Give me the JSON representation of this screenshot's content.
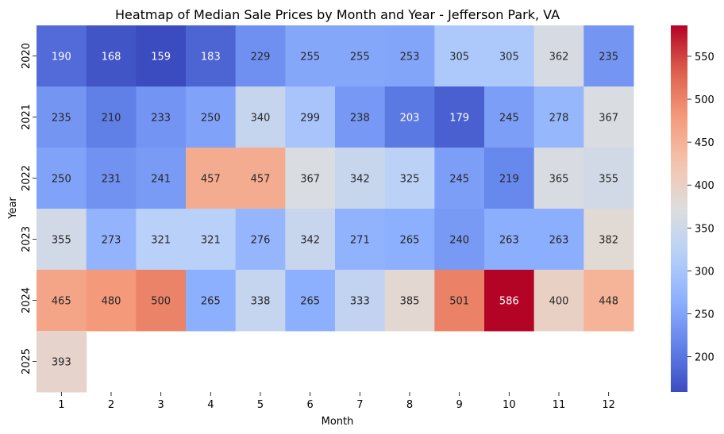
{
  "chart_data": {
    "type": "heatmap",
    "title": "Heatmap of Median Sale Prices by Month and Year - Jefferson Park, VA",
    "xlabel": "Month",
    "ylabel": "Year",
    "x": [
      "1",
      "2",
      "3",
      "4",
      "5",
      "6",
      "7",
      "8",
      "9",
      "10",
      "11",
      "12"
    ],
    "y": [
      "2020",
      "2021",
      "2022",
      "2023",
      "2024",
      "2025"
    ],
    "values": [
      [
        190,
        168,
        159,
        183,
        229,
        255,
        255,
        253,
        305,
        305,
        362,
        235
      ],
      [
        235,
        210,
        233,
        250,
        340,
        299,
        238,
        203,
        179,
        245,
        278,
        367
      ],
      [
        250,
        231,
        241,
        457,
        457,
        367,
        342,
        325,
        245,
        219,
        365,
        355
      ],
      [
        355,
        273,
        321,
        321,
        276,
        342,
        271,
        265,
        240,
        263,
        263,
        382
      ],
      [
        465,
        480,
        500,
        265,
        338,
        265,
        333,
        385,
        501,
        586,
        400,
        448
      ],
      [
        393,
        null,
        null,
        null,
        null,
        null,
        null,
        null,
        null,
        null,
        null,
        null
      ]
    ],
    "colormap": "coolwarm",
    "vmin": 159,
    "vmax": 586,
    "colorbar_ticks": [
      200,
      250,
      300,
      350,
      400,
      450,
      500,
      550
    ],
    "grid": false,
    "legend": "colorbar-right"
  }
}
